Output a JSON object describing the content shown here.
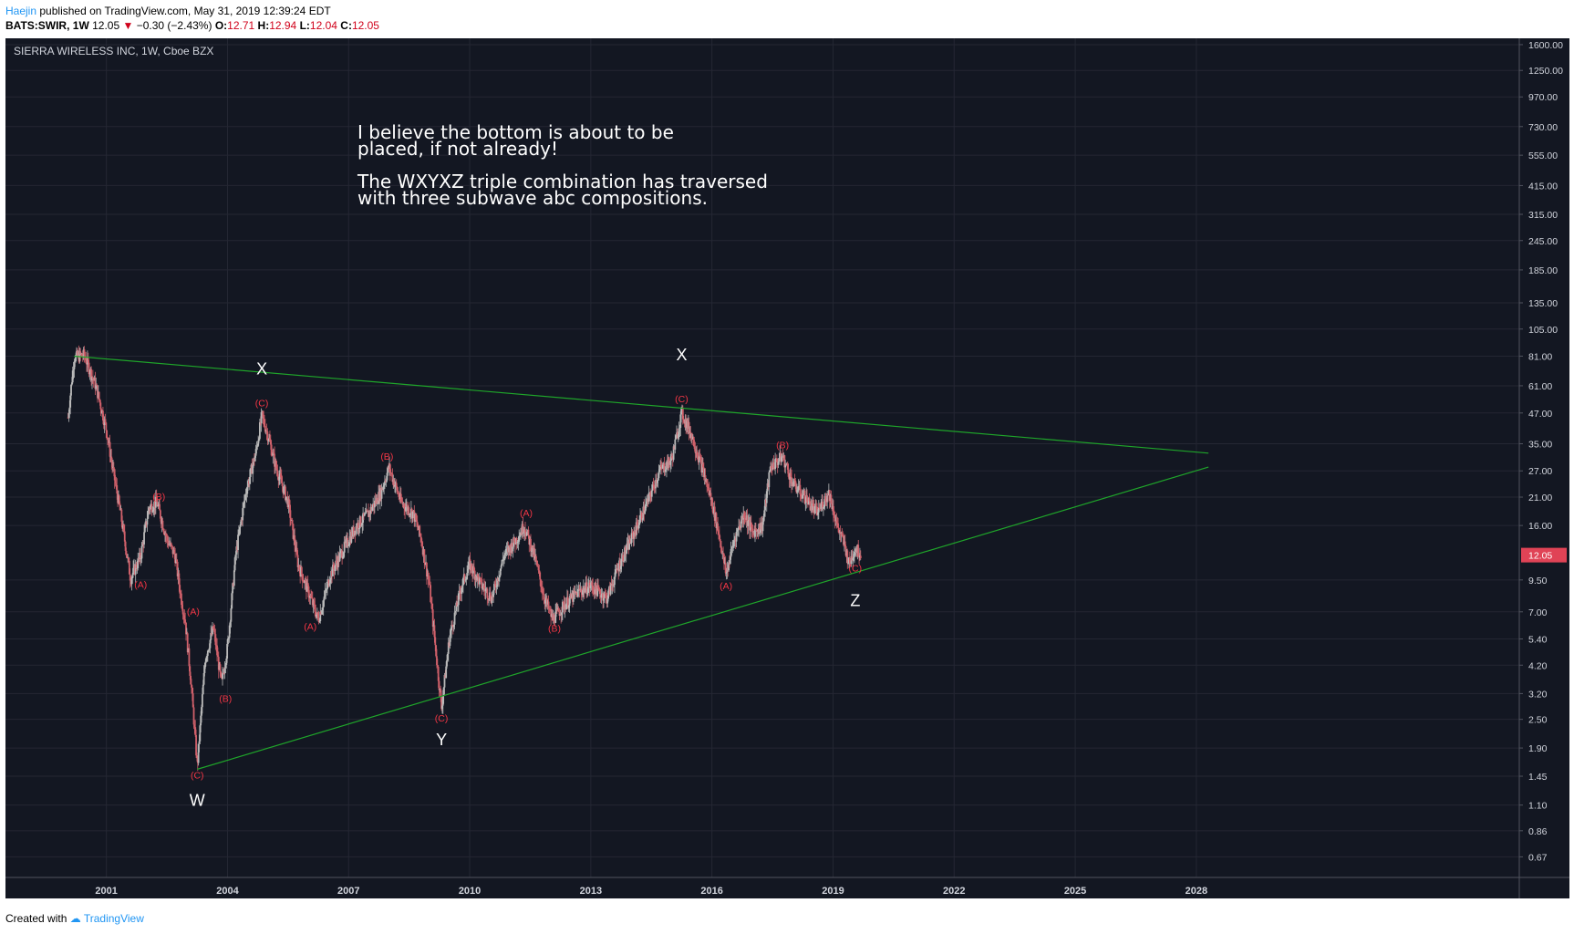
{
  "header": {
    "author": "Haejin",
    "published_text": "published on TradingView.com, May 31, 2019 12:39:24 EDT",
    "symbol": "BATS:SWIR, 1W",
    "last": "12.05",
    "change": "−0.30 (−2.43%)",
    "o_label": "O:",
    "o_val": "12.71",
    "h_label": "H:",
    "h_val": "12.94",
    "l_label": "L:",
    "l_val": "12.04",
    "c_label": "C:",
    "c_val": "12.05"
  },
  "chart_title": "SIERRA WIRELESS INC, 1W, Cboe BZX",
  "annotation": [
    "I believe the bottom is about to be",
    "placed, if not already!",
    "",
    "The WXYXZ triple combination has traversed",
    "with three subwave abc compositions."
  ],
  "footer": {
    "created_with": "Created with",
    "brand": "TradingView"
  },
  "colors": {
    "background": "#131722",
    "grid": "#242733",
    "axis_text": "#d1d4dc",
    "candle_up": "#b9b9b9",
    "candle_down": "#d0606a",
    "wave_label": "#f23645",
    "trendline": "#1fa52a",
    "price_badge": "#e04356"
  },
  "chart_data": {
    "type": "candlestick",
    "scale": "log",
    "ylim": [
      0.55,
      1700
    ],
    "xlim": [
      1998.5,
      2036
    ],
    "x_ticks": [
      "2001",
      "2004",
      "2007",
      "2010",
      "2013",
      "2016",
      "2019",
      "2022",
      "2025",
      "2028"
    ],
    "y_ticks": [
      "1600.00",
      "1250.00",
      "970.00",
      "730.00",
      "555.00",
      "415.00",
      "315.00",
      "245.00",
      "185.00",
      "135.00",
      "105.00",
      "81.00",
      "61.00",
      "47.00",
      "35.00",
      "27.00",
      "21.00",
      "16.00",
      "12.05",
      "9.50",
      "7.00",
      "5.40",
      "4.20",
      "3.20",
      "2.50",
      "1.90",
      "1.45",
      "1.10",
      "0.86",
      "0.67"
    ],
    "last_price": 12.05,
    "price_path": [
      [
        2000.05,
        45
      ],
      [
        2000.2,
        80
      ],
      [
        2000.45,
        82
      ],
      [
        2000.75,
        60
      ],
      [
        2001.0,
        40
      ],
      [
        2001.15,
        28
      ],
      [
        2001.35,
        18
      ],
      [
        2001.6,
        9.6
      ],
      [
        2001.85,
        12
      ],
      [
        2002.05,
        19
      ],
      [
        2002.25,
        20
      ],
      [
        2002.5,
        14
      ],
      [
        2002.7,
        12
      ],
      [
        2002.85,
        8.0
      ],
      [
        2002.95,
        6.5
      ],
      [
        2003.1,
        3.5
      ],
      [
        2003.25,
        1.6
      ],
      [
        2003.45,
        4.5
      ],
      [
        2003.65,
        6.0
      ],
      [
        2003.85,
        3.5
      ],
      [
        2004.0,
        5.0
      ],
      [
        2004.2,
        12
      ],
      [
        2004.45,
        22
      ],
      [
        2004.7,
        32
      ],
      [
        2004.85,
        46
      ],
      [
        2005.0,
        38
      ],
      [
        2005.2,
        28
      ],
      [
        2005.5,
        20
      ],
      [
        2005.75,
        11
      ],
      [
        2006.0,
        8.5
      ],
      [
        2006.25,
        6.5
      ],
      [
        2006.55,
        10
      ],
      [
        2006.9,
        13
      ],
      [
        2007.2,
        16
      ],
      [
        2007.5,
        18
      ],
      [
        2007.8,
        22
      ],
      [
        2008.0,
        28
      ],
      [
        2008.3,
        20
      ],
      [
        2008.6,
        18
      ],
      [
        2008.8,
        14
      ],
      [
        2009.0,
        9.0
      ],
      [
        2009.15,
        5.0
      ],
      [
        2009.3,
        2.8
      ],
      [
        2009.5,
        5.5
      ],
      [
        2009.8,
        9.0
      ],
      [
        2010.0,
        11
      ],
      [
        2010.3,
        9.0
      ],
      [
        2010.55,
        8.0
      ],
      [
        2010.85,
        12
      ],
      [
        2011.15,
        14
      ],
      [
        2011.35,
        16
      ],
      [
        2011.6,
        12
      ],
      [
        2011.85,
        8.0
      ],
      [
        2012.05,
        6.5
      ],
      [
        2012.35,
        7.5
      ],
      [
        2012.7,
        8.5
      ],
      [
        2013.0,
        9.0
      ],
      [
        2013.4,
        8.0
      ],
      [
        2013.7,
        11
      ],
      [
        2014.0,
        14
      ],
      [
        2014.4,
        20
      ],
      [
        2014.7,
        27
      ],
      [
        2015.0,
        30
      ],
      [
        2015.25,
        47
      ],
      [
        2015.5,
        38
      ],
      [
        2015.75,
        28
      ],
      [
        2016.0,
        20
      ],
      [
        2016.2,
        14
      ],
      [
        2016.35,
        10
      ],
      [
        2016.55,
        14
      ],
      [
        2016.8,
        18
      ],
      [
        2017.0,
        15
      ],
      [
        2017.25,
        16
      ],
      [
        2017.45,
        28
      ],
      [
        2017.75,
        31
      ],
      [
        2018.0,
        24
      ],
      [
        2018.3,
        21
      ],
      [
        2018.6,
        18
      ],
      [
        2018.9,
        22
      ],
      [
        2019.1,
        16
      ],
      [
        2019.3,
        13
      ],
      [
        2019.4,
        11
      ],
      [
        2019.55,
        13
      ],
      [
        2019.7,
        12.05
      ]
    ],
    "trendlines": [
      {
        "name": "upper",
        "from": [
          2000.2,
          81
        ],
        "to": [
          2028.3,
          32
        ]
      },
      {
        "name": "lower",
        "from": [
          2003.25,
          1.55
        ],
        "to": [
          2028.3,
          28
        ]
      }
    ],
    "wave_labels": [
      {
        "text": "(B)",
        "x": 2002.3,
        "y": 20.5
      },
      {
        "text": "(A)",
        "x": 2001.85,
        "y": 8.8
      },
      {
        "text": "(A)",
        "x": 2003.15,
        "y": 6.8
      },
      {
        "text": "(B)",
        "x": 2003.95,
        "y": 2.95
      },
      {
        "text": "(C)",
        "x": 2003.25,
        "y": 1.42
      },
      {
        "text": "(C)",
        "x": 2004.85,
        "y": 50
      },
      {
        "text": "(A)",
        "x": 2006.05,
        "y": 5.9
      },
      {
        "text": "(B)",
        "x": 2007.95,
        "y": 30
      },
      {
        "text": "(C)",
        "x": 2009.3,
        "y": 2.45
      },
      {
        "text": "(A)",
        "x": 2011.4,
        "y": 17.5
      },
      {
        "text": "(B)",
        "x": 2012.1,
        "y": 5.8
      },
      {
        "text": "(C)",
        "x": 2015.25,
        "y": 52
      },
      {
        "text": "(B)",
        "x": 2017.75,
        "y": 33.5
      },
      {
        "text": "(A)",
        "x": 2016.35,
        "y": 8.7
      },
      {
        "text": "(C)",
        "x": 2019.55,
        "y": 10.3
      }
    ],
    "wave_letters": [
      {
        "text": "W",
        "x": 2003.25,
        "y": 1.09
      },
      {
        "text": "X",
        "x": 2004.85,
        "y": 68
      },
      {
        "text": "Y",
        "x": 2009.3,
        "y": 1.95
      },
      {
        "text": "X",
        "x": 2015.25,
        "y": 78
      },
      {
        "text": "Z",
        "x": 2019.55,
        "y": 7.4
      }
    ]
  }
}
